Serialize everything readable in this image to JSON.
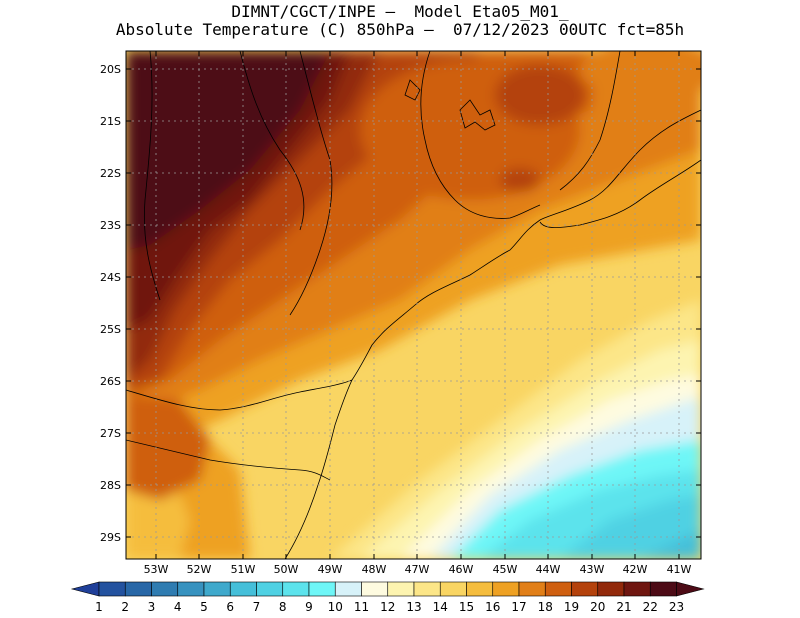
{
  "header": {
    "line1": "DIMNT/CGCT/INPE –  Model Eta05_M01_",
    "line2": "Absolute Temperature (C) 850hPa –  07/12/2023 00UTC fct=85h"
  },
  "map": {
    "lat_labels": [
      "20S",
      "21S",
      "22S",
      "23S",
      "24S",
      "25S",
      "26S",
      "27S",
      "28S",
      "29S"
    ],
    "lon_labels": [
      "53W",
      "52W",
      "51W",
      "50W",
      "49W",
      "48W",
      "47W",
      "46W",
      "45W",
      "44W",
      "43W",
      "42W",
      "41W"
    ],
    "lat_range": [
      -29.4,
      -19.9
    ],
    "lon_range": [
      -53.7,
      -40.4
    ]
  },
  "colorbar": {
    "labels": [
      "1",
      "2",
      "3",
      "4",
      "5",
      "6",
      "7",
      "8",
      "9",
      "10",
      "11",
      "12",
      "13",
      "14",
      "15",
      "16",
      "17",
      "18",
      "19",
      "20",
      "21",
      "22",
      "23"
    ],
    "colors": [
      "#1f3f99",
      "#23529f",
      "#2867a7",
      "#2f7cb1",
      "#3792bf",
      "#3fa9cc",
      "#45bfd9",
      "#4fd1e3",
      "#5ce3ec",
      "#6ef6f7",
      "#d7f2f9",
      "#fefbe0",
      "#fdf4b0",
      "#fce688",
      "#f9d563",
      "#f5bd3e",
      "#eea123",
      "#e17f18",
      "#cf5f10",
      "#b4420c",
      "#92290b",
      "#6f1610",
      "#4d0b16"
    ]
  }
}
